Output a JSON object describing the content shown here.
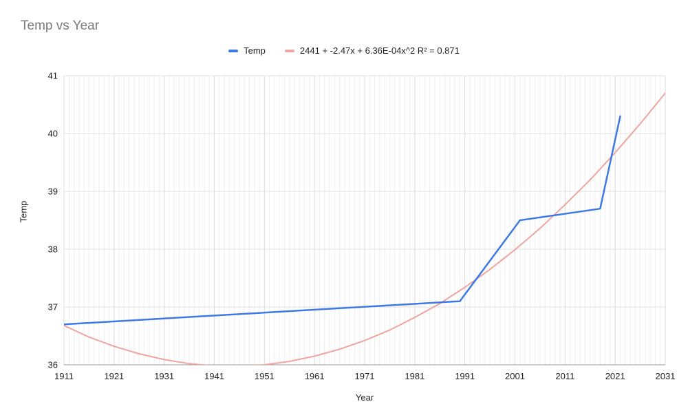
{
  "title": "Temp vs Year",
  "axes": {
    "xlabel": "Year",
    "ylabel": "Temp"
  },
  "colors": {
    "series_blue": "#3c79e6",
    "trendline_salmon": "#f0a49e",
    "minor_grid": "#efefef",
    "major_grid": "#dcdcdc",
    "h_grid": "#e0e0e0",
    "axis_line": "#9e9e9e",
    "title_gray": "#7a7a7a"
  },
  "chart_data": {
    "type": "line",
    "title": "Temp vs Year",
    "xlabel": "Year",
    "ylabel": "Temp",
    "xlim": [
      1911,
      2031
    ],
    "ylim": [
      36,
      41
    ],
    "x_ticks": [
      1911,
      1921,
      1931,
      1941,
      1951,
      1961,
      1971,
      1981,
      1991,
      2001,
      2011,
      2021,
      2031
    ],
    "y_ticks": [
      36,
      37,
      38,
      39,
      40,
      41
    ],
    "minor_x_step": 1,
    "grid": true,
    "legend_position": "top",
    "series": [
      {
        "name": "Temp",
        "color": "#3c79e6",
        "width": 2.5,
        "points": [
          [
            1911,
            36.7
          ],
          [
            1990,
            37.1
          ],
          [
            2002,
            38.5
          ],
          [
            2018,
            38.7
          ],
          [
            2022,
            40.3
          ]
        ]
      },
      {
        "name": "2441 + -2.47x + 6.36E-04x^2 R² = 0.871",
        "color": "#f0a49e",
        "width": 2,
        "points": [
          [
            1911,
            36.68
          ],
          [
            1916,
            36.48
          ],
          [
            1921,
            36.32
          ],
          [
            1926,
            36.19
          ],
          [
            1931,
            36.09
          ],
          [
            1936,
            36.02
          ],
          [
            1941,
            35.98
          ],
          [
            1946,
            35.98
          ],
          [
            1951,
            36.0
          ],
          [
            1956,
            36.06
          ],
          [
            1961,
            36.15
          ],
          [
            1966,
            36.27
          ],
          [
            1971,
            36.42
          ],
          [
            1976,
            36.6
          ],
          [
            1981,
            36.82
          ],
          [
            1986,
            37.06
          ],
          [
            1991,
            37.34
          ],
          [
            1996,
            37.65
          ],
          [
            2001,
            37.99
          ],
          [
            2006,
            38.36
          ],
          [
            2011,
            38.77
          ],
          [
            2016,
            39.2
          ],
          [
            2021,
            39.67
          ],
          [
            2026,
            40.17
          ],
          [
            2031,
            40.7
          ]
        ]
      }
    ]
  }
}
